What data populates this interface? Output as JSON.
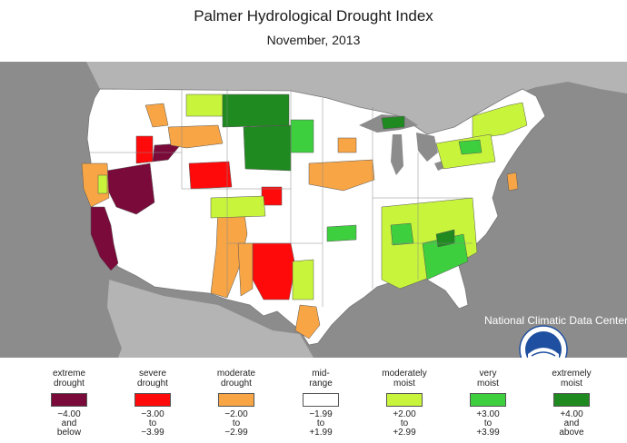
{
  "header": {
    "title": "Palmer Hydrological Drought Index",
    "subtitle": "November, 2013"
  },
  "credit": {
    "text": "National Climatic Data Center",
    "logo": "NOAA"
  },
  "colors": {
    "background": "#8c8c8c",
    "land": "#ffffff",
    "extreme_drought": "#7a0a3a",
    "severe_drought": "#ff0a0a",
    "moderate_drought": "#f7a545",
    "mid_range": "#ffffff",
    "moderately_moist": "#c8f53c",
    "very_moist": "#3ecf3e",
    "extremely_moist": "#1f8a1f"
  },
  "legend": [
    {
      "cat1": "extreme",
      "cat2": "drought",
      "r1": "−4.00",
      "r2": "and",
      "r3": "below",
      "color": "#7a0a3a"
    },
    {
      "cat1": "severe",
      "cat2": "drought",
      "r1": "−3.00",
      "r2": "to",
      "r3": "−3.99",
      "color": "#ff0a0a"
    },
    {
      "cat1": "moderate",
      "cat2": "drought",
      "r1": "−2.00",
      "r2": "to",
      "r3": "−2.99",
      "color": "#f7a545"
    },
    {
      "cat1": "mid-",
      "cat2": "range",
      "r1": "−1.99",
      "r2": "to",
      "r3": "+1.99",
      "color": "#ffffff"
    },
    {
      "cat1": "moderately",
      "cat2": "moist",
      "r1": "+2.00",
      "r2": "to",
      "r3": "+2.99",
      "color": "#c8f53c"
    },
    {
      "cat1": "very",
      "cat2": "moist",
      "r1": "+3.00",
      "r2": "to",
      "r3": "+3.99",
      "color": "#3ecf3e"
    },
    {
      "cat1": "extremely",
      "cat2": "moist",
      "r1": "+4.00",
      "r2": "and",
      "r3": "above",
      "color": "#1f8a1f"
    }
  ]
}
